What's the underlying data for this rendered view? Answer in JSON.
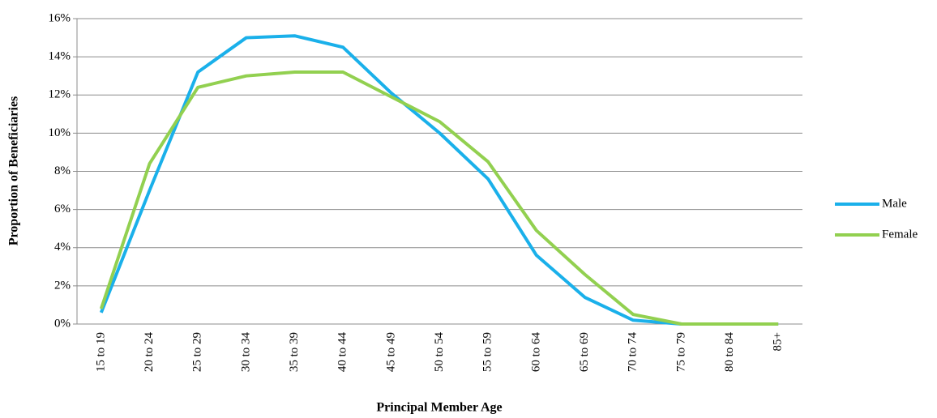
{
  "chart_data": {
    "type": "line",
    "x_label": "Principal Member Age",
    "y_label": "Proportion of Beneficiaries",
    "categories": [
      "15 to 19",
      "20 to 24",
      "25 to 29",
      "30 to 34",
      "35 to 39",
      "40 to 44",
      "45 to 49",
      "50 to 54",
      "55 to 59",
      "60 to 64",
      "65 to 69",
      "70 to 74",
      "75 to 79",
      "80 to 84",
      "85+"
    ],
    "series": [
      {
        "name": "Male",
        "color": "#1ab0ea",
        "values": [
          0.6,
          7.0,
          13.2,
          15.0,
          15.1,
          14.5,
          12.1,
          10.0,
          7.6,
          3.6,
          1.4,
          0.2,
          0,
          0,
          0
        ]
      },
      {
        "name": "Female",
        "color": "#92d050",
        "values": [
          0.8,
          8.4,
          12.4,
          13.0,
          13.2,
          13.2,
          11.9,
          10.6,
          8.5,
          4.9,
          2.6,
          0.5,
          0,
          0,
          0
        ]
      }
    ],
    "ylim": [
      0,
      16
    ],
    "yticks": [
      {
        "value": 0,
        "label": "0%"
      },
      {
        "value": 2,
        "label": "2%"
      },
      {
        "value": 4,
        "label": "4%"
      },
      {
        "value": 6,
        "label": "6%"
      },
      {
        "value": 8,
        "label": "8%"
      },
      {
        "value": 10,
        "label": "10%"
      },
      {
        "value": 12,
        "label": "12%"
      },
      {
        "value": 14,
        "label": "14%"
      },
      {
        "value": 16,
        "label": "16%"
      }
    ],
    "grid": true,
    "legend": "right"
  }
}
